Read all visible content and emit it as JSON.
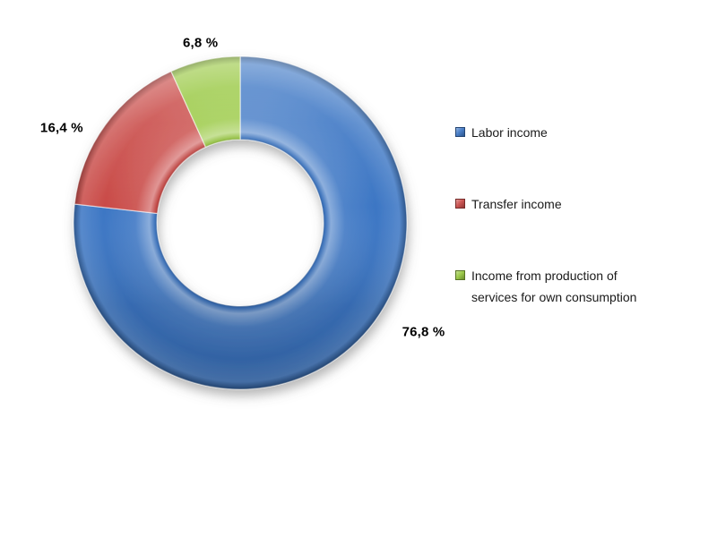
{
  "chart_data": {
    "type": "pie",
    "subtype": "donut",
    "title": "",
    "categories": [
      "Labor income",
      "Transfer income",
      "Income from production of services for own consumption"
    ],
    "values": [
      76.8,
      16.4,
      6.8
    ],
    "labels": [
      "76,8 %",
      "16,4 %",
      "6,8 %"
    ],
    "colors": [
      "#3C76C4",
      "#C94A47",
      "#96C73E"
    ],
    "unit": "%",
    "decimal_separator": ",",
    "start_angle_deg": 0,
    "direction": "clockwise",
    "hole_ratio": 0.5,
    "label_position": "outside-end",
    "legend_position": "right",
    "background": "#FFFFFF"
  },
  "legend": {
    "items": [
      {
        "label": "Labor income",
        "color": "#3C76C4"
      },
      {
        "label": "Transfer income",
        "color": "#C94A47"
      },
      {
        "label": "Income from production of services for own consumption",
        "color": "#96C73E"
      }
    ]
  }
}
